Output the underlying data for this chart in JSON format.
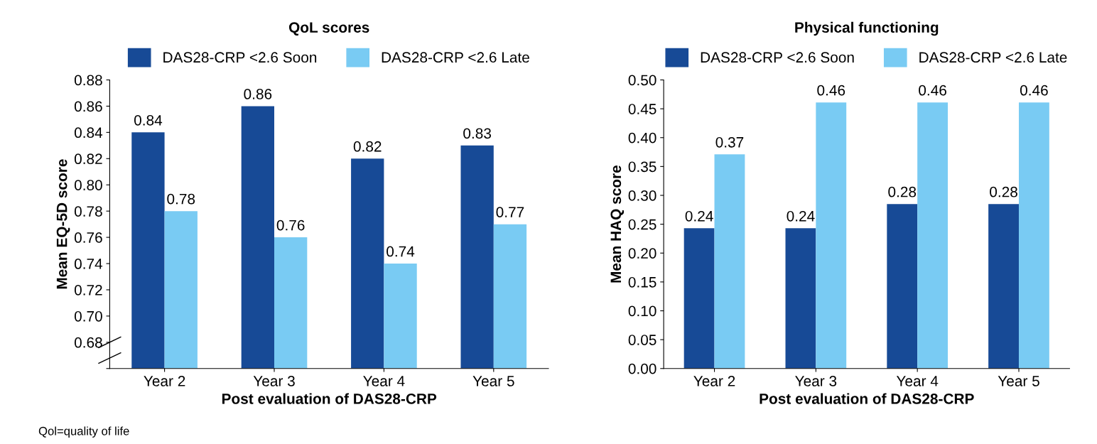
{
  "chart_data": [
    {
      "type": "bar",
      "title": "QoL scores",
      "xlabel": "Post evaluation of DAS28-CRP",
      "ylabel": "Mean EQ-5D score",
      "categories": [
        "Year 2",
        "Year 3",
        "Year 4",
        "Year 5"
      ],
      "series": [
        {
          "name": "DAS28-CRP <2.6 Soon",
          "color": "#174a96",
          "values": [
            0.84,
            0.86,
            0.82,
            0.83
          ]
        },
        {
          "name": "DAS28-CRP <2.6 Late",
          "color": "#79cbf3",
          "values": [
            0.78,
            0.76,
            0.74,
            0.77
          ]
        }
      ],
      "ylim": [
        0.66,
        0.88
      ],
      "yticks": [
        {
          "value": 0.66,
          "label": null
        },
        0.68,
        {
          "value": 0.7,
          "label": "0.70"
        },
        0.72,
        0.74,
        0.76,
        0.78,
        {
          "value": 0.8,
          "label": "0.80"
        },
        0.82,
        0.84,
        0.86,
        0.88
      ],
      "data_labels": true,
      "legend": "top",
      "grid": false,
      "annotations": [
        "Qol=quality of life"
      ]
    },
    {
      "type": "bar",
      "title": "Physical functioning",
      "xlabel": "Post evaluation of DAS28-CRP",
      "ylabel": "Mean HAQ score",
      "categories": [
        "Year 2",
        "Year 3",
        "Year 4",
        "Year 5"
      ],
      "series": [
        {
          "name": "DAS28-CRP <2.6 Soon",
          "color": "#174a96",
          "values": [
            0.243,
            0.243,
            0.285,
            0.285
          ],
          "value_labels": [
            "0.24",
            "0.24",
            "0.28",
            "0.28"
          ]
        },
        {
          "name": "DAS28-CRP <2.6 Late",
          "color": "#79cbf3",
          "values": [
            0.371,
            0.461,
            0.461,
            0.461
          ],
          "value_labels": [
            "0.37",
            "0.46",
            "0.46",
            "0.46"
          ]
        }
      ],
      "ylim": [
        0,
        0.5
      ],
      "yticks": [
        {
          "value": 0,
          "label": "0.00"
        },
        {
          "value": 0.05,
          "label": "0.05"
        },
        {
          "value": 0.1,
          "label": "0.10"
        },
        {
          "value": 0.15,
          "label": "0.15"
        },
        {
          "value": 0.2,
          "label": "0.20"
        },
        {
          "value": 0.25,
          "label": "0.25"
        },
        {
          "value": 0.3,
          "label": "0.30"
        },
        {
          "value": 0.35,
          "label": "0.35"
        },
        {
          "value": 0.4,
          "label": "0.40"
        },
        {
          "value": 0.45,
          "label": "0.45"
        },
        {
          "value": 0.5,
          "label": "0.50"
        }
      ],
      "legend": "top",
      "grid": false
    }
  ]
}
